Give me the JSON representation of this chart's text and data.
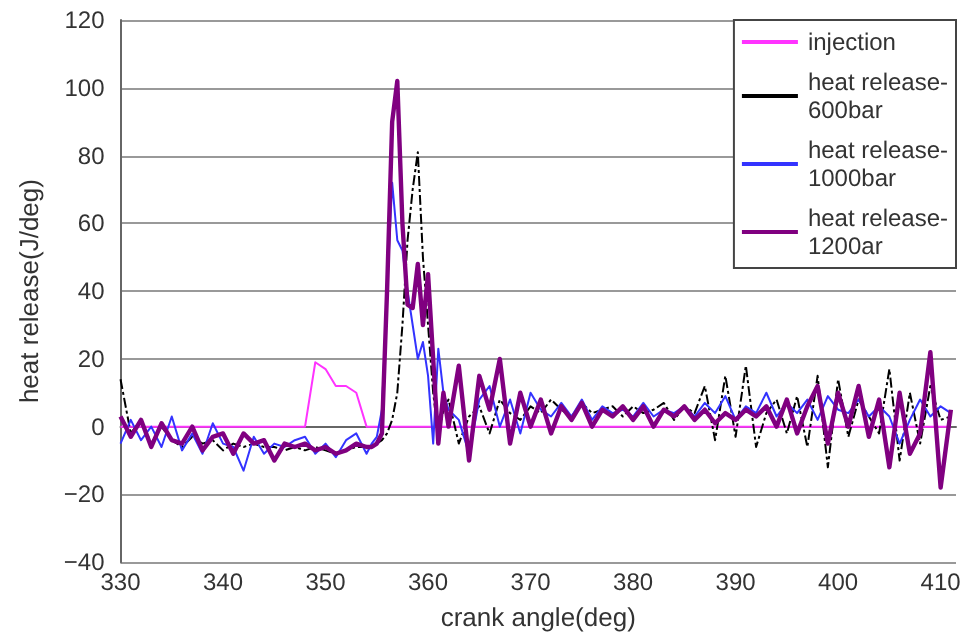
{
  "chart_data": {
    "type": "line",
    "xlabel": "crank angle(deg)",
    "ylabel": "heat release(J/deg)",
    "x": [
      330,
      331,
      332,
      333,
      334,
      335,
      336,
      337,
      338,
      339,
      340,
      341,
      342,
      343,
      344,
      345,
      346,
      347,
      348,
      349,
      350,
      351,
      352,
      353,
      354,
      354.5,
      355,
      355.5,
      356,
      356.5,
      357,
      357.5,
      358,
      358.5,
      359,
      359.5,
      360,
      360.5,
      361,
      361.5,
      362,
      363,
      364,
      365,
      366,
      367,
      368,
      369,
      370,
      371,
      372,
      373,
      374,
      375,
      376,
      377,
      378,
      379,
      380,
      381,
      382,
      383,
      384,
      385,
      386,
      387,
      388,
      389,
      390,
      391,
      392,
      393,
      394,
      395,
      396,
      397,
      398,
      399,
      400,
      401,
      402,
      403,
      404,
      405,
      406,
      407,
      408,
      409,
      410,
      411
    ],
    "series": [
      {
        "name": "injection",
        "color": "#ff33ff",
        "line_style": "solid",
        "values": [
          0,
          0,
          0,
          0,
          0,
          0,
          0,
          0,
          0,
          0,
          0,
          0,
          0,
          0,
          0,
          0,
          0,
          0,
          0,
          19,
          17,
          12,
          12,
          10,
          0,
          0,
          0,
          0,
          0,
          0,
          0,
          0,
          0,
          0,
          0,
          0,
          0,
          0,
          0,
          0,
          0,
          0,
          0,
          0,
          0,
          0,
          0,
          0,
          0,
          0,
          0,
          0,
          0,
          0,
          0,
          0,
          0,
          0,
          0,
          0,
          0,
          0,
          0,
          0,
          0,
          0,
          0,
          0,
          0,
          0,
          0,
          0,
          0,
          0,
          0,
          0,
          0,
          0,
          0,
          0,
          0,
          0,
          0,
          0,
          0,
          0,
          0,
          0,
          0,
          0
        ]
      },
      {
        "name": "heat release-600bar",
        "color": "#000000",
        "line_style": "dashed",
        "values": [
          14,
          -2,
          2,
          -5,
          0,
          -4,
          -6,
          -3,
          -5,
          -4,
          -7,
          -5,
          -6,
          -5,
          -6,
          -6,
          -7,
          -6,
          -7,
          -6,
          -7,
          -8,
          -7,
          -6,
          -6,
          -6,
          -5,
          -4,
          -2,
          2,
          10,
          30,
          55,
          70,
          81,
          50,
          30,
          10,
          -3,
          5,
          8,
          -5,
          3,
          6,
          -2,
          8,
          4,
          2,
          6,
          4,
          8,
          5,
          3,
          7,
          4,
          5,
          6,
          3,
          6,
          4,
          5,
          7,
          2,
          6,
          4,
          12,
          -4,
          15,
          -3,
          18,
          -6,
          4,
          8,
          -2,
          9,
          -6,
          15,
          -12,
          14,
          -3,
          8,
          3,
          -2,
          17,
          -10,
          10,
          -5,
          12,
          2,
          3
        ]
      },
      {
        "name": "heat release-1000bar",
        "color": "#3333ff",
        "line_style": "solid",
        "values": [
          -5,
          2,
          -4,
          0,
          -6,
          3,
          -7,
          -2,
          -8,
          1,
          -5,
          -6,
          -13,
          -3,
          -8,
          -5,
          -6,
          -4,
          -3,
          -8,
          -5,
          -9,
          -4,
          -2,
          -8,
          -5,
          -3,
          5,
          40,
          72,
          55,
          52,
          40,
          30,
          20,
          25,
          15,
          -5,
          23,
          10,
          5,
          2,
          -8,
          8,
          12,
          0,
          8,
          -2,
          10,
          5,
          3,
          7,
          3,
          8,
          2,
          6,
          4,
          5,
          3,
          7,
          3,
          5,
          4,
          6,
          3,
          7,
          4,
          9,
          2,
          6,
          4,
          10,
          3,
          7,
          4,
          8,
          2,
          9,
          5,
          4,
          8,
          3,
          6,
          3,
          -5,
          2,
          8,
          3,
          6,
          4
        ]
      },
      {
        "name": "heat release-1200ar",
        "color": "#800080",
        "line_style": "solid",
        "values": [
          3,
          -3,
          2,
          -6,
          1,
          -4,
          -5,
          0,
          -7,
          -3,
          -2,
          -8,
          -2,
          -5,
          -4,
          -10,
          -5,
          -6,
          -5,
          -7,
          -6,
          -8,
          -7,
          -5,
          -6,
          -6,
          -5,
          -2,
          40,
          90,
          102,
          60,
          36,
          35,
          48,
          30,
          45,
          20,
          -5,
          10,
          0,
          18,
          -10,
          15,
          5,
          20,
          -5,
          10,
          0,
          8,
          -2,
          6,
          2,
          7,
          0,
          5,
          3,
          6,
          2,
          6,
          0,
          5,
          3,
          6,
          2,
          5,
          1,
          4,
          2,
          5,
          3,
          6,
          0,
          8,
          -2,
          6,
          12,
          -5,
          10,
          0,
          12,
          -3,
          8,
          -12,
          10,
          -8,
          -2,
          22,
          -18,
          5
        ]
      }
    ],
    "xlim": [
      330,
      411.5
    ],
    "xticks": [
      330,
      340,
      350,
      360,
      370,
      380,
      390,
      400,
      410
    ],
    "ylim": [
      -40,
      120
    ],
    "yticks": [
      -40,
      -20,
      0,
      20,
      40,
      60,
      80,
      100,
      120
    ],
    "grid": "y",
    "legend": "top right",
    "marker": "none"
  }
}
